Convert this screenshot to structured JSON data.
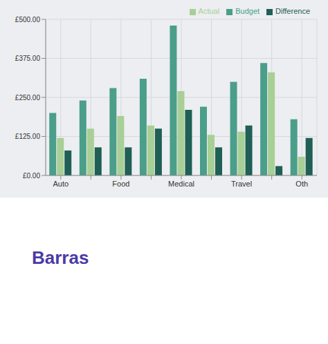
{
  "chart_data": {
    "type": "bar",
    "title": "Barras",
    "categories": [
      "Auto",
      null,
      "Food",
      null,
      "Medical",
      null,
      "Travel",
      null,
      "Oth"
    ],
    "series": [
      {
        "name": "Budget",
        "color": "#4a9e8a",
        "values": [
          200,
          240,
          280,
          310,
          480,
          220,
          300,
          360,
          180
        ]
      },
      {
        "name": "Actual",
        "color": "#a8cf96",
        "values": [
          120,
          150,
          190,
          160,
          270,
          130,
          140,
          330,
          60
        ]
      },
      {
        "name": "Difference",
        "color": "#1f5f55",
        "values": [
          80,
          90,
          90,
          150,
          210,
          90,
          160,
          30,
          120
        ]
      }
    ],
    "ylim": [
      0,
      500
    ],
    "yticks": [
      {
        "value": 0,
        "label": "£0.00"
      },
      {
        "value": 125,
        "label": "£125.00"
      },
      {
        "value": 250,
        "label": "£250.00"
      },
      {
        "value": 375,
        "label": "£375.00"
      },
      {
        "value": 500,
        "label": "£500.00"
      }
    ],
    "grid": true,
    "legend": "top-right"
  }
}
